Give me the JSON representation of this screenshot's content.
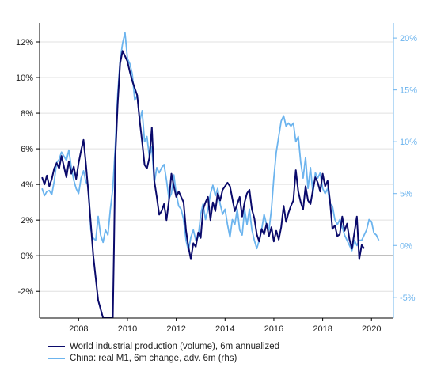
{
  "colors": {
    "ip": "#0a0a6b",
    "m1": "#6cb4ee",
    "right_axis": "#6cb4ee",
    "grid": "#e0e0e0",
    "zero_line": "#000000"
  },
  "legend": {
    "ip": "World industrial production (volume), 6m annualized",
    "m1": "China: real M1, 6m change, adv. 6m (rhs)"
  },
  "chart_data": {
    "type": "line",
    "title": "",
    "grid": true,
    "legend_position": "bottom-left",
    "x_range": [
      2006.4,
      2020.9
    ],
    "x_ticks": [
      2008,
      2010,
      2012,
      2014,
      2016,
      2018,
      2020
    ],
    "y_left": {
      "range": [
        -3.5,
        12.8
      ],
      "ticks": [
        -2,
        0,
        2,
        4,
        6,
        8,
        10,
        12
      ],
      "tick_labels": [
        "-2%",
        "0%",
        "2%",
        "4%",
        "6%",
        "8%",
        "10%",
        "12%"
      ]
    },
    "y_right": {
      "range": [
        -7.0,
        21.0
      ],
      "ticks": [
        -5,
        0,
        5,
        10,
        15,
        20
      ],
      "tick_labels": [
        "-5%",
        "0%",
        "5%",
        "10%",
        "15%",
        "20%"
      ]
    },
    "series": [
      {
        "name": "World industrial production (volume), 6m annualized",
        "axis": "left",
        "x": [
          2006.5,
          2006.6,
          2006.7,
          2006.8,
          2006.9,
          2007.0,
          2007.1,
          2007.2,
          2007.3,
          2007.4,
          2007.5,
          2007.6,
          2007.7,
          2007.8,
          2007.9,
          2008.0,
          2008.1,
          2008.2,
          2008.3,
          2008.4,
          2008.5,
          2008.6,
          2008.8,
          2009.0,
          2009.2,
          2009.4,
          2009.45,
          2009.5,
          2009.6,
          2009.7,
          2009.8,
          2009.9,
          2010.0,
          2010.1,
          2010.2,
          2010.3,
          2010.4,
          2010.5,
          2010.6,
          2010.7,
          2010.8,
          2010.9,
          2011.0,
          2011.1,
          2011.2,
          2011.3,
          2011.4,
          2011.5,
          2011.6,
          2011.7,
          2011.8,
          2011.9,
          2012.0,
          2012.1,
          2012.2,
          2012.3,
          2012.4,
          2012.5,
          2012.6,
          2012.7,
          2012.8,
          2012.9,
          2013.0,
          2013.1,
          2013.2,
          2013.3,
          2013.4,
          2013.5,
          2013.6,
          2013.7,
          2013.8,
          2013.9,
          2014.0,
          2014.1,
          2014.2,
          2014.3,
          2014.4,
          2014.5,
          2014.6,
          2014.7,
          2014.8,
          2014.9,
          2015.0,
          2015.1,
          2015.2,
          2015.3,
          2015.4,
          2015.5,
          2015.6,
          2015.7,
          2015.8,
          2015.9,
          2016.0,
          2016.1,
          2016.2,
          2016.3,
          2016.4,
          2016.5,
          2016.6,
          2016.7,
          2016.8,
          2016.9,
          2017.0,
          2017.1,
          2017.2,
          2017.3,
          2017.4,
          2017.5,
          2017.6,
          2017.7,
          2017.8,
          2017.9,
          2018.0,
          2018.1,
          2018.2,
          2018.3,
          2018.4,
          2018.5,
          2018.6,
          2018.7,
          2018.8,
          2018.9,
          2019.0,
          2019.1,
          2019.2,
          2019.3,
          2019.4,
          2019.5,
          2019.6,
          2019.7
        ],
        "values": [
          4.4,
          4.0,
          4.5,
          3.9,
          4.3,
          4.9,
          5.2,
          4.9,
          5.6,
          5.0,
          4.4,
          5.3,
          4.6,
          5.0,
          4.3,
          5.2,
          5.9,
          6.5,
          5.1,
          3.5,
          1.8,
          0.0,
          -2.5,
          -3.5,
          -3.5,
          -3.5,
          0.5,
          5.5,
          8.5,
          10.8,
          11.5,
          11.2,
          10.9,
          10.3,
          9.8,
          9.4,
          9.0,
          7.6,
          6.4,
          5.1,
          4.9,
          5.5,
          7.2,
          4.2,
          3.3,
          2.3,
          2.5,
          2.9,
          2.0,
          3.1,
          4.6,
          3.9,
          3.3,
          3.6,
          3.3,
          3.0,
          1.4,
          0.5,
          -0.2,
          0.7,
          0.5,
          1.3,
          1.0,
          2.6,
          3.0,
          3.3,
          2.0,
          3.0,
          2.5,
          3.5,
          3.1,
          3.7,
          3.9,
          4.1,
          3.9,
          3.2,
          2.5,
          2.9,
          3.3,
          2.2,
          3.0,
          3.5,
          3.7,
          2.6,
          2.1,
          1.2,
          0.8,
          1.5,
          1.2,
          1.8,
          1.1,
          1.6,
          0.8,
          1.4,
          0.9,
          1.6,
          2.8,
          1.9,
          2.4,
          2.8,
          3.1,
          4.8,
          3.6,
          3.0,
          2.6,
          3.9,
          3.1,
          2.9,
          3.7,
          4.4,
          4.1,
          3.6,
          4.6,
          3.9,
          4.2,
          3.1,
          1.5,
          1.7,
          1.1,
          1.2,
          2.2,
          1.4,
          1.8,
          0.9,
          0.4,
          1.3,
          2.2,
          -0.2,
          0.6,
          0.4
        ]
      },
      {
        "name": "China: real M1, 6m change, adv. 6m (rhs)",
        "axis": "right",
        "x": [
          2006.5,
          2006.6,
          2006.7,
          2006.8,
          2006.9,
          2007.0,
          2007.1,
          2007.2,
          2007.3,
          2007.4,
          2007.5,
          2007.6,
          2007.7,
          2007.8,
          2007.9,
          2008.0,
          2008.1,
          2008.2,
          2008.3,
          2008.4,
          2008.5,
          2008.6,
          2008.7,
          2008.8,
          2008.9,
          2009.0,
          2009.1,
          2009.2,
          2009.3,
          2009.4,
          2009.5,
          2009.6,
          2009.7,
          2009.8,
          2009.9,
          2010.0,
          2010.1,
          2010.2,
          2010.3,
          2010.4,
          2010.5,
          2010.6,
          2010.7,
          2010.8,
          2010.9,
          2011.0,
          2011.1,
          2011.2,
          2011.3,
          2011.4,
          2011.5,
          2011.6,
          2011.7,
          2011.8,
          2011.9,
          2012.0,
          2012.1,
          2012.2,
          2012.3,
          2012.4,
          2012.5,
          2012.6,
          2012.7,
          2012.8,
          2012.9,
          2013.0,
          2013.1,
          2013.2,
          2013.3,
          2013.4,
          2013.5,
          2013.6,
          2013.7,
          2013.8,
          2013.9,
          2014.0,
          2014.1,
          2014.2,
          2014.3,
          2014.4,
          2014.5,
          2014.6,
          2014.7,
          2014.8,
          2014.9,
          2015.0,
          2015.1,
          2015.2,
          2015.3,
          2015.4,
          2015.5,
          2015.6,
          2015.7,
          2015.8,
          2015.9,
          2016.0,
          2016.1,
          2016.2,
          2016.3,
          2016.4,
          2016.5,
          2016.6,
          2016.7,
          2016.8,
          2016.9,
          2017.0,
          2017.1,
          2017.2,
          2017.3,
          2017.4,
          2017.5,
          2017.6,
          2017.7,
          2017.8,
          2017.9,
          2018.0,
          2018.1,
          2018.2,
          2018.3,
          2018.4,
          2018.5,
          2018.6,
          2018.7,
          2018.8,
          2018.9,
          2019.0,
          2019.1,
          2019.2,
          2019.3,
          2019.4,
          2019.5,
          2019.6,
          2019.7,
          2019.8,
          2019.9,
          2020.0,
          2020.1,
          2020.2,
          2020.3
        ],
        "values": [
          5.5,
          4.8,
          5.2,
          5.3,
          4.9,
          6.2,
          8.0,
          8.3,
          9.0,
          8.6,
          8.2,
          9.2,
          7.5,
          6.3,
          5.5,
          5.0,
          6.5,
          7.2,
          6.1,
          5.8,
          1.5,
          0.7,
          0.5,
          2.8,
          1.0,
          0.3,
          1.5,
          1.0,
          3.5,
          5.5,
          9.5,
          14.5,
          17.8,
          19.5,
          20.5,
          18.0,
          17.5,
          16.5,
          14.0,
          14.5,
          12.0,
          13.0,
          10.0,
          10.5,
          8.5,
          9.5,
          6.0,
          7.5,
          7.0,
          7.5,
          7.8,
          6.3,
          4.5,
          5.0,
          6.8,
          5.0,
          3.8,
          3.5,
          2.5,
          0.5,
          -0.5,
          0.8,
          1.5,
          0.5,
          0.8,
          3.0,
          4.0,
          2.5,
          3.5,
          5.0,
          5.8,
          4.8,
          5.5,
          4.0,
          3.0,
          3.5,
          2.0,
          0.8,
          2.5,
          2.0,
          3.5,
          1.5,
          1.0,
          3.5,
          2.0,
          3.5,
          1.5,
          0.5,
          -0.3,
          0.5,
          1.5,
          3.0,
          2.0,
          1.5,
          3.5,
          6.5,
          9.0,
          10.5,
          12.0,
          12.5,
          11.5,
          11.8,
          11.5,
          11.8,
          10.0,
          10.5,
          8.0,
          6.5,
          8.5,
          5.5,
          7.5,
          5.0,
          7.0,
          6.5,
          7.0,
          5.5,
          5.0,
          5.5,
          4.0,
          3.8,
          2.5,
          2.0,
          2.5,
          1.8,
          1.0,
          0.5,
          0.0,
          -0.5,
          0.5,
          0.0,
          0.5,
          0.5,
          1.0,
          1.5,
          2.5,
          2.3,
          1.2,
          1.0,
          0.5
        ]
      }
    ]
  }
}
